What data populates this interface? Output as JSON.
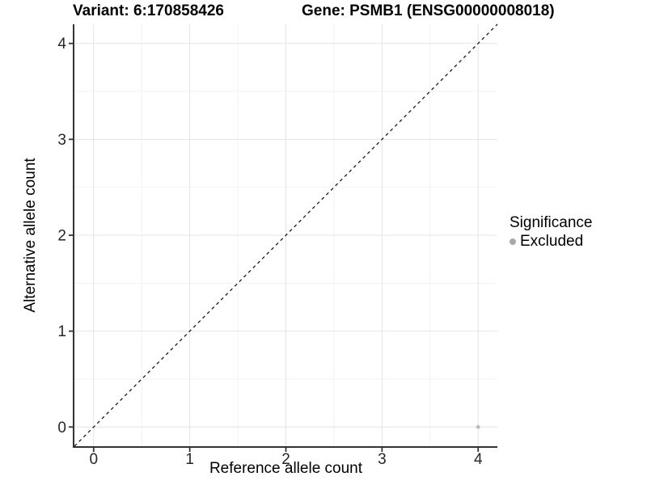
{
  "titles": {
    "variant": "Variant: 6:170858426",
    "gene": "Gene: PSMB1 (ENSG00000008018)"
  },
  "chart_data": {
    "type": "scatter",
    "title_left": "Variant: 6:170858426",
    "title_right": "Gene: PSMB1 (ENSG00000008018)",
    "xlabel": "Reference allele count",
    "ylabel": "Alternative allele count",
    "xlim": [
      -0.2,
      4.2
    ],
    "ylim": [
      -0.2,
      4.2
    ],
    "x_ticks": [
      0,
      1,
      2,
      3,
      4
    ],
    "y_ticks": [
      0,
      1,
      2,
      3,
      4
    ],
    "x_tick_labels": [
      "0",
      "1",
      "2",
      "3",
      "4"
    ],
    "y_tick_labels": [
      "0",
      "1",
      "2",
      "3",
      "4"
    ],
    "x_minor_ticks": [
      0.5,
      1.5,
      2.5,
      3.5
    ],
    "y_minor_ticks": [
      0.5,
      1.5,
      2.5,
      3.5
    ],
    "grid": true,
    "identity_line": {
      "style": "dashed",
      "from": [
        -0.2,
        -0.2
      ],
      "to": [
        4.2,
        4.2
      ],
      "color": "#1a1a1a"
    },
    "series": [
      {
        "name": "Excluded",
        "color": "#bdbdbd",
        "points": [
          {
            "x": 4,
            "y": 0
          }
        ]
      }
    ],
    "legend": {
      "title": "Significance",
      "position": "right",
      "items": [
        {
          "label": "Excluded",
          "color": "#a9a9a9"
        }
      ]
    },
    "colors": {
      "grid_major": "#e4e4e4",
      "grid_minor": "#f2f2f2",
      "axis_line": "#333333",
      "tick_mark": "#333333",
      "tick_label": "#262626",
      "point": "#bdbdbd",
      "background": "#ffffff"
    }
  }
}
